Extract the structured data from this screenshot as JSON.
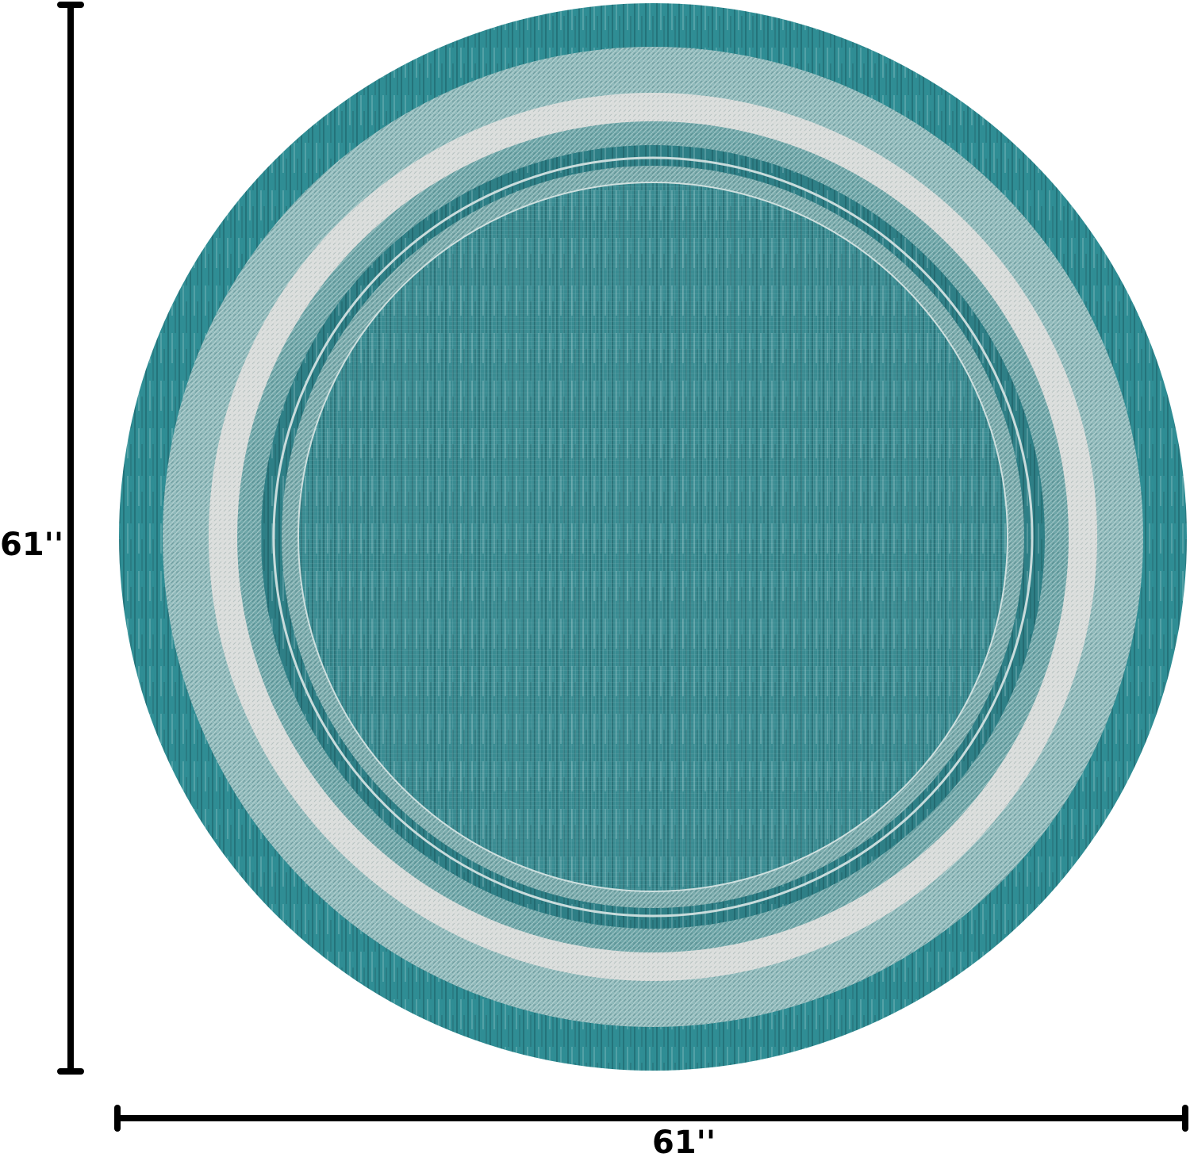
{
  "dimensions": {
    "height_label": "61''",
    "width_label": "61''"
  },
  "colors": {
    "teal_border": "#2f8d94",
    "teal_dark": "#1f5f66",
    "light_band": "#8fb9ba",
    "white_ring": "#d9dcda",
    "field": "#3a8c92",
    "dimension_line": "#000000"
  }
}
